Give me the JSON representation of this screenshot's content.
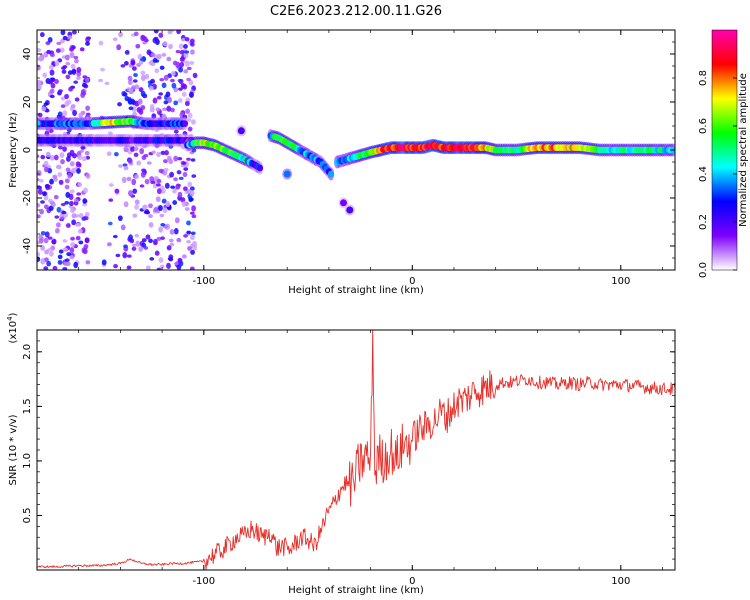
{
  "figure": {
    "title": "C2E6.2023.212.00.11.G26"
  },
  "chart_data": [
    {
      "type": "heatmap",
      "name": "spectrogram",
      "xlabel": "Height of straight line (km)",
      "ylabel": "Frequency (Hz)",
      "xlim": [
        -180,
        126
      ],
      "ylim": [
        -50,
        50
      ],
      "xticks": [
        -100,
        0,
        100
      ],
      "yticks": [
        -40,
        -20,
        0,
        20,
        40
      ],
      "colorbar": {
        "label": "Normalized spectral amplitude",
        "range": [
          0,
          1
        ],
        "ticks": [
          "0.0",
          "0.2",
          "0.4",
          "0.6",
          "0.8"
        ],
        "colors": [
          "#ffffff",
          "#7d00ff",
          "#0000ff",
          "#00ffff",
          "#00ff00",
          "#ffff00",
          "#ff0000",
          "#ff00b0"
        ]
      },
      "tracks": [
        {
          "x": [
            -180,
            -175,
            -165,
            -155,
            -145,
            -135,
            -128,
            -122,
            -115,
            -108
          ],
          "y": [
            11,
            11,
            11,
            11,
            11.5,
            12,
            11,
            11,
            11,
            11
          ],
          "amp": [
            0.3,
            0.25,
            0.35,
            0.3,
            0.75,
            0.55,
            0.3,
            0.25,
            0.3,
            0.25
          ]
        },
        {
          "x": [
            -180,
            -170,
            -160,
            -150,
            -140,
            -130,
            -120,
            -110,
            -105
          ],
          "y": [
            4,
            4,
            4,
            4,
            4,
            4,
            4,
            4,
            4
          ],
          "amp": [
            0.25,
            0.2,
            0.2,
            0.25,
            0.2,
            0.2,
            0.25,
            0.2,
            0.2
          ]
        },
        {
          "x": [
            -108,
            -104,
            -100,
            -95,
            -90,
            -85,
            -80,
            -76,
            -72
          ],
          "y": [
            2,
            3,
            3,
            2,
            0,
            -2,
            -4,
            -6,
            -8
          ],
          "amp": [
            0.3,
            0.5,
            0.7,
            0.6,
            0.6,
            0.55,
            0.45,
            0.3,
            0.25
          ]
        },
        {
          "x": [
            -68,
            -64,
            -60,
            -56,
            -52,
            -48,
            -44,
            -41,
            -38
          ],
          "y": [
            6,
            5,
            3,
            1,
            -1,
            -3,
            -5,
            -8,
            -11
          ],
          "amp": [
            0.4,
            0.55,
            0.6,
            0.5,
            0.35,
            0.35,
            0.3,
            0.3,
            0.3
          ]
        },
        {
          "x": [
            -36,
            -32,
            -28,
            -24,
            -20,
            -15,
            -10,
            -5,
            0,
            5,
            10,
            15,
            20,
            25,
            30,
            35,
            40,
            50,
            60,
            70,
            80,
            90,
            100,
            110,
            120,
            126
          ],
          "y": [
            -5,
            -4,
            -3,
            -2,
            -1,
            0,
            1,
            1,
            1,
            1,
            2,
            1,
            1,
            1,
            1,
            1,
            0,
            0,
            1,
            1,
            1,
            0,
            0,
            0,
            0,
            0
          ],
          "amp": [
            0.35,
            0.4,
            0.45,
            0.5,
            0.55,
            0.8,
            0.85,
            0.9,
            0.85,
            0.85,
            0.9,
            0.85,
            0.9,
            0.9,
            0.85,
            0.75,
            0.6,
            0.5,
            0.8,
            0.75,
            0.7,
            0.5,
            0.45,
            0.5,
            0.45,
            0.4
          ]
        }
      ],
      "blobs": [
        {
          "x": -180,
          "y": 11,
          "amp": 0.4
        },
        {
          "x": -60,
          "y": -10,
          "amp": 0.35
        },
        {
          "x": -82,
          "y": 8,
          "amp": 0.2
        },
        {
          "x": -30,
          "y": -25,
          "amp": 0.2
        },
        {
          "x": -33,
          "y": -22,
          "amp": 0.15
        }
      ],
      "noise_regions": [
        {
          "x": [
            -180,
            -155
          ],
          "y": [
            -50,
            50
          ],
          "density": 0.55
        },
        {
          "x": [
            -150,
            -138
          ],
          "y": [
            -50,
            50
          ],
          "density": 0.12
        },
        {
          "x": [
            -138,
            -104
          ],
          "y": [
            -50,
            50
          ],
          "density": 0.5
        }
      ]
    },
    {
      "type": "line",
      "name": "snr",
      "xlabel": "Height of straight line (km)",
      "ylabel": "SNR (10 * v/v)",
      "y_multiplier": "(x10",
      "y_multiplier_exp": "4",
      "xlim": [
        -180,
        126
      ],
      "ylim": [
        0,
        2.2
      ],
      "xticks": [
        -100,
        0,
        100
      ],
      "yticks": [
        "0.5",
        "1.0",
        "1.5",
        "2.0"
      ],
      "color": "#e8302b",
      "series": [
        {
          "x": [
            -180,
            -170,
            -160,
            -150,
            -145,
            -140,
            -135,
            -130,
            -125,
            -120,
            -115,
            -110,
            -105,
            -100,
            -97,
            -94,
            -90,
            -87,
            -84,
            -80,
            -77,
            -74,
            -71,
            -68,
            -65,
            -62,
            -59,
            -56,
            -53,
            -50,
            -47,
            -44,
            -41,
            -38,
            -35,
            -32,
            -30,
            -28,
            -26,
            -24,
            -22,
            -20,
            -19,
            -18,
            -16,
            -14,
            -12,
            -10,
            -8,
            -6,
            -4,
            -2,
            0,
            2,
            4,
            6,
            8,
            10,
            12,
            14,
            16,
            18,
            20,
            22,
            24,
            26,
            28,
            30,
            33,
            36,
            40,
            44,
            48,
            52,
            56,
            60,
            65,
            70,
            75,
            80,
            85,
            90,
            95,
            100,
            105,
            110,
            115,
            120,
            126
          ],
          "y": [
            0.03,
            0.03,
            0.04,
            0.04,
            0.05,
            0.06,
            0.1,
            0.06,
            0.05,
            0.05,
            0.06,
            0.06,
            0.07,
            0.08,
            0.12,
            0.15,
            0.2,
            0.25,
            0.3,
            0.32,
            0.38,
            0.33,
            0.3,
            0.35,
            0.2,
            0.22,
            0.18,
            0.25,
            0.3,
            0.28,
            0.22,
            0.35,
            0.5,
            0.6,
            0.72,
            0.8,
            0.78,
            0.8,
            0.95,
            1.0,
            1.05,
            0.98,
            2.2,
            0.9,
            1.05,
            1.0,
            1.05,
            1.1,
            1.0,
            1.1,
            1.15,
            1.15,
            1.2,
            1.25,
            1.3,
            1.3,
            1.35,
            1.35,
            1.4,
            1.45,
            1.4,
            1.45,
            1.5,
            1.55,
            1.55,
            1.58,
            1.6,
            1.65,
            1.65,
            1.68,
            1.7,
            1.72,
            1.72,
            1.74,
            1.75,
            1.72,
            1.72,
            1.7,
            1.72,
            1.7,
            1.72,
            1.7,
            1.7,
            1.7,
            1.69,
            1.68,
            1.67,
            1.66,
            1.66
          ]
        }
      ]
    }
  ]
}
